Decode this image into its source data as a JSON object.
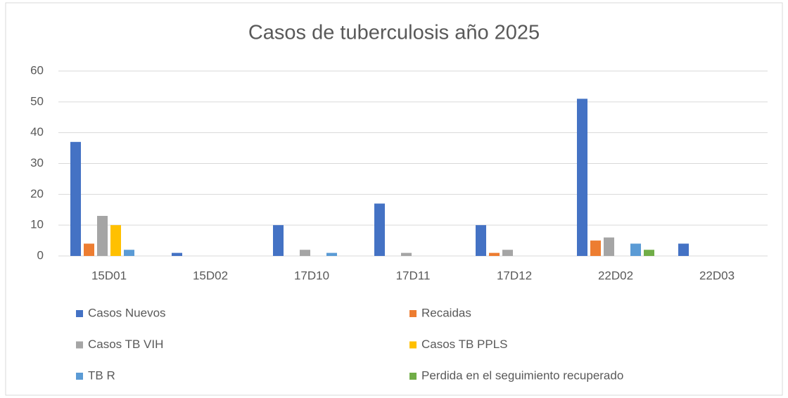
{
  "chart_data": {
    "type": "bar",
    "title": "Casos de tuberculosis año 2025",
    "categories": [
      "15D01",
      "15D02",
      "17D10",
      "17D11",
      "17D12",
      "22D02",
      "22D03"
    ],
    "series": [
      {
        "name": "Casos Nuevos",
        "color": "#4472c4",
        "values": [
          37,
          1,
          10,
          17,
          10,
          51,
          4
        ]
      },
      {
        "name": "Recaidas",
        "color": "#ed7d31",
        "values": [
          4,
          0,
          0,
          0,
          1,
          5,
          0
        ]
      },
      {
        "name": "Casos TB VIH",
        "color": "#a5a5a5",
        "values": [
          13,
          0,
          2,
          1,
          2,
          6,
          0
        ]
      },
      {
        "name": "Casos TB PPLS",
        "color": "#ffc000",
        "values": [
          10,
          0,
          0,
          0,
          0,
          0,
          0
        ]
      },
      {
        "name": "TB R",
        "color": "#5b9bd5",
        "values": [
          2,
          0,
          1,
          0,
          0,
          4,
          0
        ]
      },
      {
        "name": "Perdida en el seguimiento recuperado",
        "color": "#70ad47",
        "values": [
          0,
          0,
          0,
          0,
          0,
          2,
          0
        ]
      }
    ],
    "ylim": [
      0,
      60
    ],
    "yticks": [
      0,
      10,
      20,
      30,
      40,
      50,
      60
    ],
    "grid": true,
    "legend": "bottom"
  }
}
